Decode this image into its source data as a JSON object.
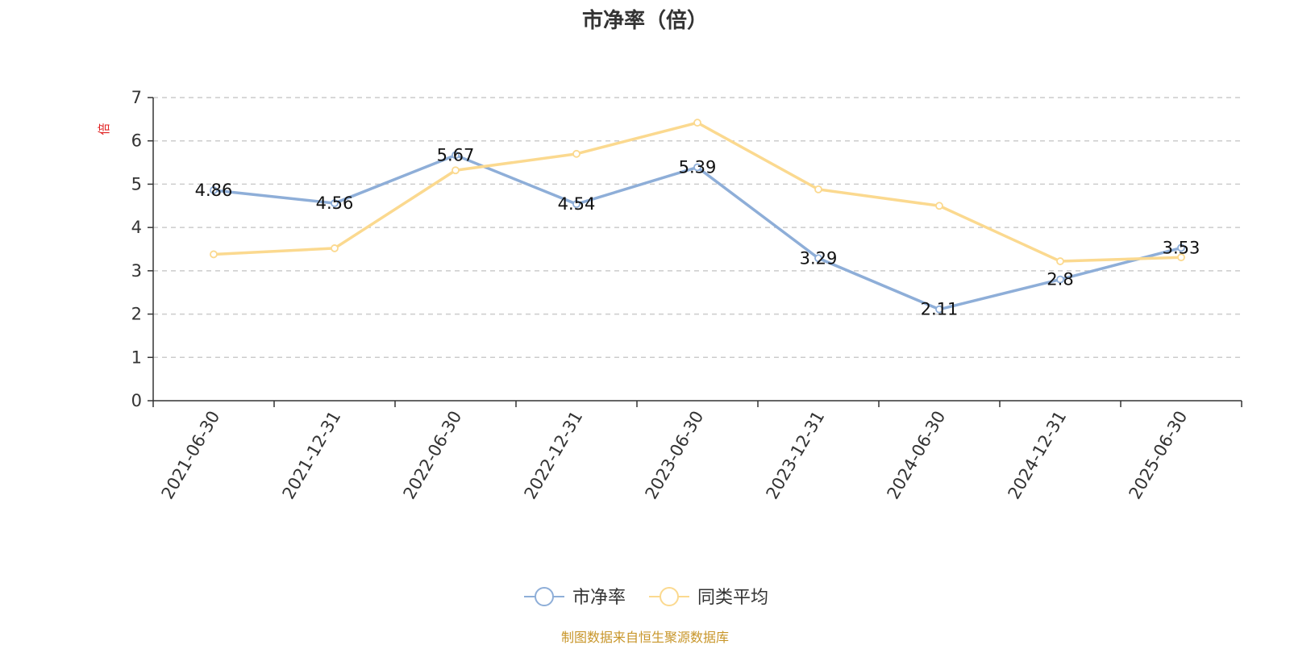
{
  "chart_data": {
    "type": "line",
    "title": "市净率（倍）",
    "ylabel": "倍",
    "xlabel": "",
    "categories": [
      "2021-06-30",
      "2021-12-31",
      "2022-06-30",
      "2022-12-31",
      "2023-06-30",
      "2023-12-31",
      "2024-06-30",
      "2024-12-31",
      "2025-06-30"
    ],
    "ylim": [
      0,
      7
    ],
    "yticks": [
      "0",
      "1",
      "2",
      "3",
      "4",
      "5",
      "6",
      "7"
    ],
    "grid": true,
    "legend_position": "bottom-center",
    "series": [
      {
        "name": "市净率",
        "values": [
          4.86,
          4.56,
          5.67,
          4.54,
          5.39,
          3.29,
          2.11,
          2.8,
          3.53
        ],
        "labels": [
          "4.86",
          "4.56",
          "5.67",
          "4.54",
          "5.39",
          "3.29",
          "2.11",
          "2.8",
          "3.53"
        ],
        "color": "#8eaed8",
        "show_labels": true
      },
      {
        "name": "同类平均",
        "values": [
          3.38,
          3.52,
          5.32,
          5.7,
          6.42,
          4.88,
          4.5,
          3.22,
          3.31
        ],
        "color": "#fbd98f",
        "show_labels": false
      }
    ]
  },
  "source_note": "制图数据来自恒生聚源数据库",
  "colors": {
    "axis": "#333333",
    "grid": "#cccccc",
    "unit_label": "#e02020",
    "source_note": "#c8962a"
  }
}
